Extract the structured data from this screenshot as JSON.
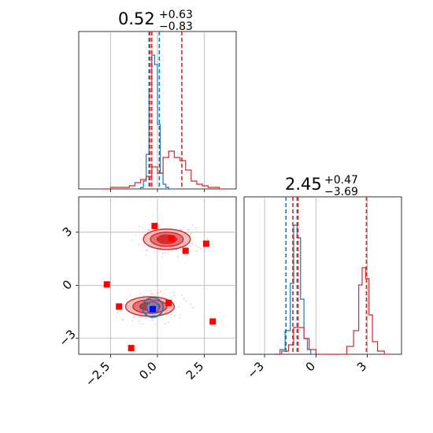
{
  "colors": {
    "blue": "#1f77b4",
    "red": "#d62728",
    "red_fill_dark": "#d62728",
    "red_fill_mid": "#e56a6b",
    "red_fill_light": "#f2b4b4",
    "marker": "#ff0000",
    "marker_blue": "#0000ff",
    "grid": "#b0b0b0"
  },
  "chart_data": [
    {
      "type": "histogram",
      "panel": "top-left",
      "parameter_index": 0,
      "title": {
        "value": "0.52",
        "plus": "+0.63",
        "minus": "−0.83"
      },
      "xlim": [
        -4.2,
        4.2
      ],
      "x_ticks": [
        -2.5,
        0.0,
        2.5
      ],
      "ylim": [
        0,
        1.0
      ],
      "grid": true,
      "series": [
        {
          "color": "blue",
          "x": [
            -1.2,
            -0.9,
            -0.75,
            -0.6,
            -0.45,
            -0.3,
            -0.15,
            0.0,
            0.15,
            0.3,
            0.45,
            0.6
          ],
          "values": [
            0.0,
            0.01,
            0.05,
            0.22,
            0.62,
            0.85,
            0.79,
            0.41,
            0.1,
            0.03,
            0.01,
            0.0
          ]
        },
        {
          "color": "red",
          "x": [
            -3.0,
            -2.5,
            -2.0,
            -1.5,
            -1.2,
            -0.9,
            -0.6,
            -0.3,
            0.0,
            0.3,
            0.6,
            0.9,
            1.2,
            1.5,
            1.8,
            2.1,
            2.4,
            2.7,
            3.0,
            3.3
          ],
          "values": [
            0.0,
            0.01,
            0.01,
            0.02,
            0.04,
            0.06,
            0.08,
            0.14,
            0.1,
            0.2,
            0.24,
            0.2,
            0.18,
            0.12,
            0.05,
            0.03,
            0.02,
            0.01,
            0.01,
            0.0
          ]
        }
      ],
      "vlines": [
        {
          "x": -0.45,
          "color": "blue"
        },
        {
          "x": 0.1,
          "color": "blue"
        },
        {
          "x": -0.4,
          "color": "red"
        },
        {
          "x": -0.3,
          "color": "red"
        },
        {
          "x": 1.3,
          "color": "red"
        }
      ]
    },
    {
      "type": "contour",
      "panel": "bottom-left",
      "parameter_indices": [
        0,
        1
      ],
      "xlim": [
        -4.2,
        4.2
      ],
      "ylim": [
        -3.9,
        5.0
      ],
      "x_ticks": [
        -2.5,
        0.0,
        2.5
      ],
      "y_ticks": [
        -3,
        0,
        3
      ],
      "grid": true,
      "red_modes": [
        {
          "cx": 0.5,
          "cy": 2.6,
          "sx": 2.5,
          "sy": 1.15
        },
        {
          "cx": -0.4,
          "cy": -1.2,
          "sx": 2.6,
          "sy": 1.1
        }
      ],
      "blue_mode": {
        "cx": -0.25,
        "cy": -1.25,
        "sx": 0.55,
        "sy": 0.55
      },
      "markers": {
        "red": [
          {
            "x": -0.15,
            "y": 3.35
          },
          {
            "x": 0.75,
            "y": 2.65
          },
          {
            "x": 1.5,
            "y": 1.95
          },
          {
            "x": 2.6,
            "y": 2.35
          },
          {
            "x": -2.7,
            "y": 0.05
          },
          {
            "x": -2.05,
            "y": -1.2
          },
          {
            "x": 0.6,
            "y": -1.0
          },
          {
            "x": 2.95,
            "y": -2.05
          },
          {
            "x": -1.4,
            "y": -3.55
          }
        ],
        "blue": [
          {
            "x": -0.25,
            "y": -1.35
          }
        ]
      }
    },
    {
      "type": "histogram",
      "panel": "bottom-right",
      "parameter_index": 1,
      "title": {
        "value": "2.45",
        "plus": "+0.47",
        "minus": "−3.69"
      },
      "xlim": [
        -4.2,
        5.0
      ],
      "x_ticks": [
        -3,
        0,
        3
      ],
      "ylim": [
        0,
        1.0
      ],
      "grid": true,
      "series": [
        {
          "color": "blue",
          "x": [
            -2.4,
            -2.1,
            -1.8,
            -1.5,
            -1.3,
            -1.1,
            -0.9,
            -0.7,
            -0.5,
            -0.3
          ],
          "values": [
            0.0,
            0.03,
            0.15,
            0.45,
            0.82,
            0.74,
            0.35,
            0.1,
            0.03,
            0.0
          ]
        },
        {
          "color": "red",
          "x": [
            -2.4,
            -2.0,
            -1.6,
            -1.3,
            -1.0,
            -0.7,
            -0.4,
            0.0,
            1.0,
            1.8,
            2.2,
            2.5,
            2.7,
            2.9,
            3.1,
            3.3,
            3.6,
            4.0
          ],
          "values": [
            0.0,
            0.02,
            0.06,
            0.17,
            0.17,
            0.1,
            0.03,
            0.0,
            0.0,
            0.05,
            0.15,
            0.44,
            0.55,
            0.48,
            0.25,
            0.08,
            0.02,
            0.0
          ]
        }
      ],
      "vlines": [
        {
          "x": -1.75,
          "color": "blue"
        },
        {
          "x": -1.1,
          "color": "blue"
        },
        {
          "x": -1.35,
          "color": "red"
        },
        {
          "x": -1.05,
          "color": "red"
        },
        {
          "x": 2.95,
          "color": "red"
        }
      ]
    }
  ]
}
